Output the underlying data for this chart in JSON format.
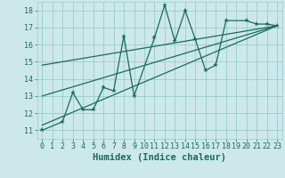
{
  "bg_color": "#cce8e8",
  "grid_color": "#99cccc",
  "line_color": "#1a6b5a",
  "xlabel": "Humidex (Indice chaleur)",
  "xlabel_fontsize": 7.5,
  "tick_fontsize": 6,
  "xlim": [
    -0.5,
    23.5
  ],
  "ylim": [
    10.5,
    18.5
  ],
  "xticks": [
    0,
    1,
    2,
    3,
    4,
    5,
    6,
    7,
    8,
    9,
    10,
    11,
    12,
    13,
    14,
    15,
    16,
    17,
    18,
    19,
    20,
    21,
    22,
    23
  ],
  "yticks": [
    11,
    12,
    13,
    14,
    15,
    16,
    17,
    18
  ],
  "scatter_x": [
    0,
    2,
    3,
    4,
    5,
    6,
    7,
    8,
    9,
    11,
    12,
    13,
    14,
    15,
    16,
    17,
    18,
    20,
    21,
    22,
    23
  ],
  "scatter_y": [
    11.0,
    11.5,
    13.2,
    12.2,
    12.2,
    13.5,
    13.3,
    16.5,
    13.0,
    16.4,
    18.3,
    16.2,
    18.0,
    16.3,
    14.5,
    14.8,
    17.4,
    17.4,
    17.2,
    17.2,
    17.1
  ],
  "line1_x": [
    0,
    23
  ],
  "line1_y": [
    11.3,
    17.1
  ],
  "line2_x": [
    0,
    23
  ],
  "line2_y": [
    13.0,
    17.1
  ],
  "line3_x": [
    0,
    23
  ],
  "line3_y": [
    14.8,
    17.1
  ]
}
